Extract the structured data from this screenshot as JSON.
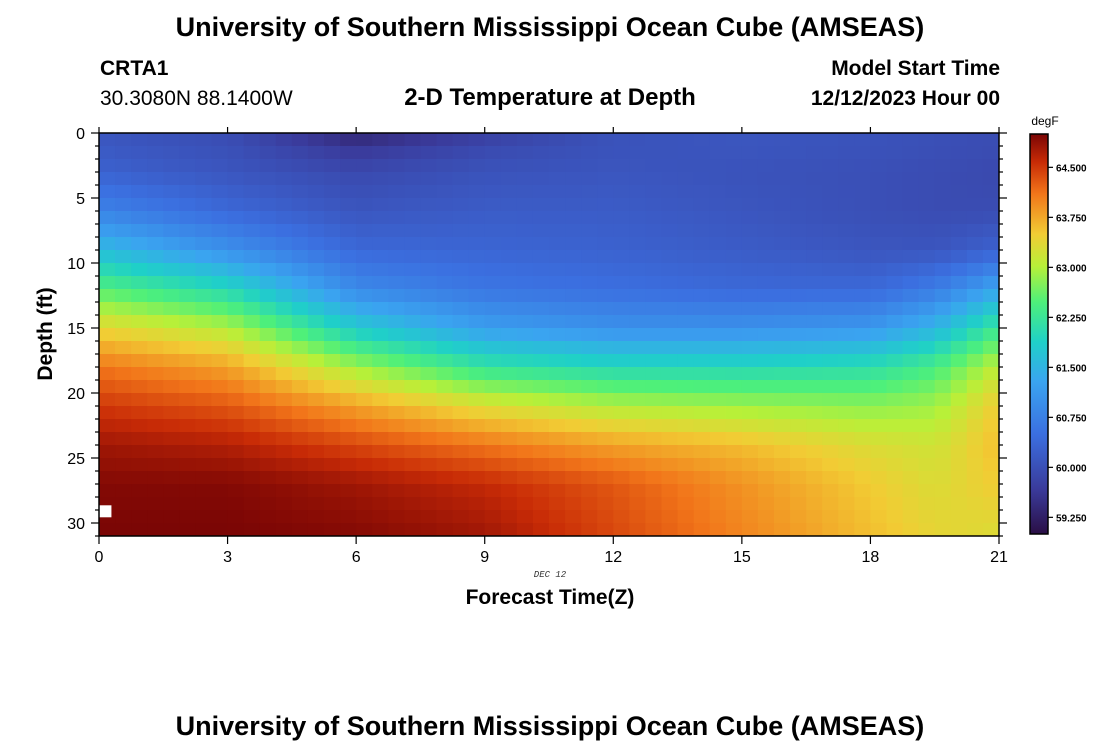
{
  "page": {
    "title": "University of Southern Mississippi Ocean Cube (AMSEAS)",
    "station_name": "CRTA1",
    "coordinates": "30.3080N  88.1400W",
    "center_title": "2-D Temperature at Depth",
    "start_label": "Model Start Time",
    "start_value": "12/12/2023 Hour 00",
    "footer_title": "University of Southern Mississippi Ocean Cube (AMSEAS)"
  },
  "chart_data": {
    "type": "heatmap",
    "title": "2-D Temperature at Depth",
    "xlabel": "Forecast Time(Z)",
    "ylabel": "Depth (ft)",
    "xlim": [
      0,
      21
    ],
    "ylim": [
      0,
      31
    ],
    "x_ticks": [
      0,
      3,
      6,
      9,
      12,
      15,
      18,
      21
    ],
    "y_ticks": [
      0,
      5,
      10,
      15,
      20,
      25,
      30
    ],
    "x_tick_labels": [
      "0",
      "3",
      "6",
      "9",
      "12",
      "15",
      "18",
      "21"
    ],
    "y_tick_labels": [
      "0",
      "5",
      "10",
      "15",
      "20",
      "25",
      "30"
    ],
    "date_label": "DEC 12",
    "colorbar": {
      "unit": "degF",
      "min": 59.0,
      "max": 65.0,
      "ticks": [
        59.25,
        60.0,
        60.75,
        61.5,
        62.25,
        63.0,
        63.75,
        64.5
      ],
      "tick_labels": [
        "59.250",
        "60.000",
        "60.750",
        "61.500",
        "62.250",
        "63.000",
        "63.750",
        "64.500"
      ]
    },
    "grid": {
      "times": [
        0,
        3,
        6,
        9,
        12,
        15,
        18,
        19.5,
        21
      ],
      "depths": [
        0,
        1,
        3,
        6,
        9,
        12,
        15,
        18,
        21,
        24,
        27,
        31
      ],
      "temps_degF": [
        [
          60.1,
          59.95,
          59.3,
          59.7,
          60.05,
          60.1,
          60.05,
          60.0,
          59.95
        ],
        [
          60.15,
          60.0,
          59.6,
          59.9,
          60.05,
          60.1,
          60.05,
          60.0,
          59.95
        ],
        [
          60.3,
          60.1,
          59.9,
          60.05,
          60.1,
          60.05,
          60.0,
          59.95,
          59.9
        ],
        [
          60.8,
          60.4,
          60.1,
          60.2,
          60.2,
          60.1,
          60.0,
          59.95,
          59.95
        ],
        [
          61.6,
          61.0,
          60.4,
          60.35,
          60.3,
          60.2,
          60.1,
          60.1,
          60.3
        ],
        [
          62.5,
          62.0,
          60.9,
          60.6,
          60.5,
          60.4,
          60.4,
          60.7,
          61.3
        ],
        [
          63.4,
          63.0,
          61.8,
          61.2,
          61.0,
          61.0,
          61.1,
          61.5,
          62.3
        ],
        [
          64.1,
          63.8,
          62.9,
          62.2,
          62.0,
          62.0,
          62.1,
          62.4,
          63.1
        ],
        [
          64.5,
          64.3,
          63.8,
          63.3,
          63.0,
          62.9,
          62.8,
          62.9,
          63.5
        ],
        [
          64.8,
          64.7,
          64.4,
          64.1,
          63.8,
          63.6,
          63.3,
          63.2,
          63.6
        ],
        [
          64.95,
          64.95,
          64.8,
          64.6,
          64.3,
          63.9,
          63.5,
          63.3,
          63.5
        ],
        [
          65.0,
          65.0,
          64.95,
          64.8,
          64.4,
          64.0,
          63.6,
          63.4,
          63.3
        ]
      ]
    },
    "marker": {
      "time": 0.15,
      "depth": 29.1
    }
  }
}
